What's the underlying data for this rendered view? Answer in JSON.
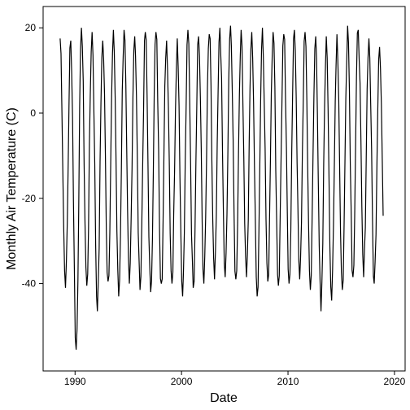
{
  "chart_data": {
    "type": "line",
    "title": "",
    "xlabel": "Date",
    "ylabel": "Monthly Air Temperature (C)",
    "xlim": [
      1987.0,
      2021.0
    ],
    "ylim": [
      -60.5,
      25.0
    ],
    "x_ticks": [
      1990,
      2000,
      2010,
      2020
    ],
    "y_ticks": [
      -40,
      -20,
      0,
      20
    ],
    "grid": false,
    "legend": "none",
    "colors": {
      "line": "#000000",
      "axis": "#000000",
      "background": "#ffffff"
    },
    "series": [
      {
        "x_start": 1988.5,
        "x_step_years": 0.08333333333333333,
        "annual_cycle_peaks": {
          "years": [
            1988.6,
            1989.6,
            1990.6,
            1991.6,
            1992.6,
            1993.6,
            1994.6,
            1995.6,
            1996.6,
            1997.6,
            1998.6,
            1999.6,
            2000.6,
            2001.6,
            2002.6,
            2003.6,
            2004.6,
            2005.6,
            2006.6,
            2007.6,
            2008.6,
            2009.6,
            2010.6,
            2011.6,
            2012.6,
            2013.6,
            2014.6,
            2015.6,
            2016.6,
            2017.6,
            2018.6
          ],
          "summer_max": [
            17.5,
            17.0,
            20.0,
            19.0,
            17.0,
            19.5,
            19.5,
            18.0,
            19.0,
            19.0,
            17.0,
            17.5,
            19.5,
            18.0,
            18.5,
            20.0,
            20.5,
            19.5,
            19.0,
            20.0,
            19.0,
            18.5,
            19.5,
            19.0,
            18.0,
            18.0,
            18.5,
            20.5,
            19.5,
            17.5,
            15.5
          ],
          "winter_min": [
            -41.0,
            -55.5,
            -40.5,
            -46.5,
            -39.5,
            -43.0,
            -40.0,
            -41.5,
            -42.0,
            -40.0,
            -40.0,
            -43.0,
            -41.0,
            -40.0,
            -39.0,
            -38.5,
            -39.0,
            -38.5,
            -43.0,
            -39.5,
            -40.5,
            -40.0,
            -39.0,
            -41.5,
            -46.5,
            -44.0,
            -41.5,
            -38.5,
            -38.5,
            -40.0,
            -37.5
          ]
        }
      }
    ]
  }
}
